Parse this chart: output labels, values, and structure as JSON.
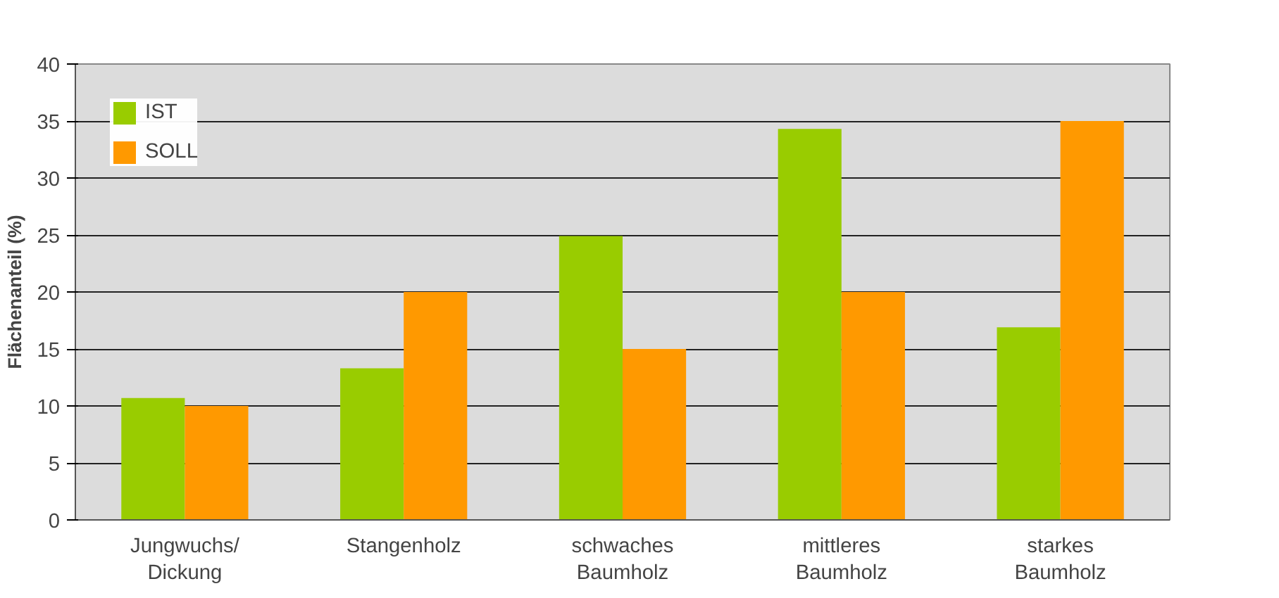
{
  "chart_data": {
    "type": "bar",
    "ylabel": "Flächenanteil (%)",
    "categories": [
      "Jungwuchs/\nDickung",
      "Stangenholz",
      "schwaches\nBaumholz",
      "mittleres\nBaumholz",
      "starkes\nBaumholz"
    ],
    "series": [
      {
        "name": "IST",
        "color": "#99cc00",
        "values": [
          10.7,
          13.3,
          24.9,
          34.3,
          16.9
        ]
      },
      {
        "name": "SOLL",
        "color": "#ff9900",
        "values": [
          10,
          20,
          15,
          20,
          35
        ]
      }
    ],
    "ylim": [
      0,
      40
    ],
    "yticks": [
      0,
      5,
      10,
      15,
      20,
      25,
      30,
      35,
      40
    ],
    "grid": "y",
    "legend": "top left"
  }
}
